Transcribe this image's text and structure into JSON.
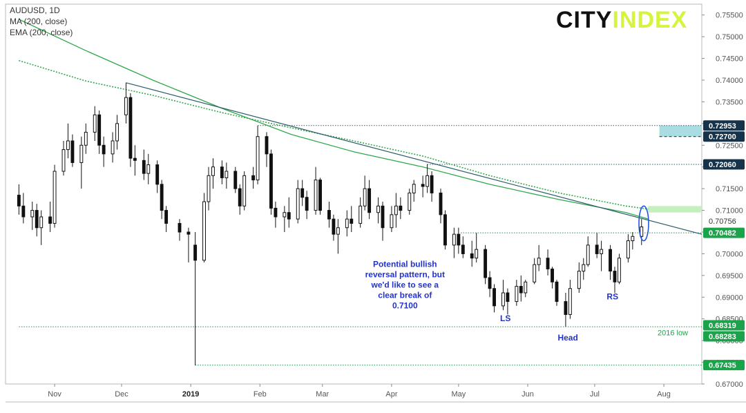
{
  "header": {
    "symbol": "AUDUSD, 1D",
    "indicator_ma": "MA (200, close)",
    "indicator_ema": "EMA (200, close)"
  },
  "logo": {
    "part1": "CITY",
    "part2": "INDEX"
  },
  "colors": {
    "candle": "#111111",
    "ma": "#2ea84a",
    "ema": "#2ea84a",
    "trendline": "#2b5a6b",
    "level_line": "#1a8f4e",
    "tag_dark": "#17334a",
    "tag_green": "#1aa34a",
    "zone_green": "#c6efc0",
    "zone_blue": "#a9dce3",
    "annotation_text": "#2233cc",
    "ellipse": "#2255dd"
  },
  "chart_data": {
    "type": "candlestick",
    "title": "AUDUSD, 1D",
    "x_tick_labels": [
      "Nov",
      "Dec",
      "2019",
      "Feb",
      "Mar",
      "Apr",
      "May",
      "Jun",
      "Jul",
      "Aug"
    ],
    "y_range": [
      0.67,
      0.7575
    ],
    "y_tick_labels": [
      "0.75500",
      "0.75000",
      "0.74500",
      "0.74000",
      "0.73500",
      "0.73000",
      "0.72500",
      "0.72000",
      "0.71500",
      "0.71000",
      "0.70500",
      "0.70000",
      "0.69500",
      "0.69000",
      "0.68500",
      "0.68000",
      "0.67500",
      "0.67000"
    ],
    "price_tags": [
      {
        "label": "0.72953",
        "value": 0.72953,
        "style": "dark"
      },
      {
        "label": "0.72700",
        "value": 0.727,
        "style": "dark"
      },
      {
        "label": "0.72060",
        "value": 0.7206,
        "style": "dark"
      },
      {
        "label": "0.70756",
        "value": 0.70756,
        "style": "plain"
      },
      {
        "label": "0.70482",
        "value": 0.70482,
        "style": "green"
      },
      {
        "label": "0.68319",
        "value": 0.68319,
        "style": "green"
      },
      {
        "label": "0.68283",
        "value": 0.68283,
        "style": "green"
      },
      {
        "label": "0.67435",
        "value": 0.67435,
        "style": "green"
      }
    ],
    "horizontal_levels": [
      {
        "value": 0.72953,
        "from": "2019-01-31",
        "to": "2019-08-18",
        "color": "dark"
      },
      {
        "value": 0.7206,
        "from": "2019-04-17",
        "to": "2019-08-18",
        "color": "dark"
      },
      {
        "value": 0.70482,
        "from": "2019-05-02",
        "to": "2019-08-18",
        "color": "green"
      },
      {
        "value": 0.68319,
        "from": "2018-10-16",
        "to": "2019-08-18",
        "color": "green"
      },
      {
        "value": 0.67435,
        "from": "2019-01-03",
        "to": "2019-08-18",
        "color": "green"
      }
    ],
    "zones": [
      {
        "y1": 0.711,
        "y2": 0.7095,
        "from": "2019-07-25",
        "to": "2019-08-18",
        "color": "green"
      },
      {
        "y1": 0.72953,
        "y2": 0.727,
        "from": "2019-07-30",
        "to": "2019-08-18",
        "color": "blue"
      }
    ],
    "trendline": {
      "from": {
        "date": "2018-12-03",
        "value": 0.7394
      },
      "to": {
        "date": "2019-08-18",
        "value": 0.7045
      }
    },
    "ma_200": {
      "name": "MA (200, close)",
      "points": [
        [
          "2018-10-16",
          0.754
        ],
        [
          "2018-11-15",
          0.7468
        ],
        [
          "2018-12-15",
          0.74
        ],
        [
          "2019-01-15",
          0.7335
        ],
        [
          "2019-02-15",
          0.7275
        ],
        [
          "2019-03-15",
          0.7235
        ],
        [
          "2019-04-15",
          0.72
        ],
        [
          "2019-05-15",
          0.716
        ],
        [
          "2019-06-15",
          0.7125
        ],
        [
          "2019-07-15",
          0.7095
        ],
        [
          "2019-07-25",
          0.708
        ]
      ]
    },
    "ema_200": {
      "name": "EMA (200, close)",
      "points": [
        [
          "2018-10-16",
          0.7445
        ],
        [
          "2018-11-15",
          0.7398
        ],
        [
          "2018-12-15",
          0.7365
        ],
        [
          "2019-01-15",
          0.7325
        ],
        [
          "2019-02-15",
          0.729
        ],
        [
          "2019-03-15",
          0.726
        ],
        [
          "2019-04-15",
          0.7225
        ],
        [
          "2019-05-15",
          0.718
        ],
        [
          "2019-06-15",
          0.714
        ],
        [
          "2019-07-15",
          0.711
        ],
        [
          "2019-07-25",
          0.7103
        ]
      ]
    },
    "candles": [
      {
        "date": "2018-10-16",
        "o": 0.7135,
        "h": 0.716,
        "l": 0.709,
        "c": 0.711
      },
      {
        "date": "2018-10-18",
        "o": 0.711,
        "h": 0.714,
        "l": 0.707,
        "c": 0.7085
      },
      {
        "date": "2018-10-22",
        "o": 0.7085,
        "h": 0.712,
        "l": 0.7055,
        "c": 0.71
      },
      {
        "date": "2018-10-24",
        "o": 0.71,
        "h": 0.7115,
        "l": 0.704,
        "c": 0.706
      },
      {
        "date": "2018-10-26",
        "o": 0.706,
        "h": 0.71,
        "l": 0.702,
        "c": 0.7085
      },
      {
        "date": "2018-10-30",
        "o": 0.7085,
        "h": 0.712,
        "l": 0.705,
        "c": 0.707
      },
      {
        "date": "2018-11-01",
        "o": 0.707,
        "h": 0.7205,
        "l": 0.706,
        "c": 0.719
      },
      {
        "date": "2018-11-05",
        "o": 0.719,
        "h": 0.726,
        "l": 0.718,
        "c": 0.724
      },
      {
        "date": "2018-11-07",
        "o": 0.724,
        "h": 0.73,
        "l": 0.722,
        "c": 0.726
      },
      {
        "date": "2018-11-09",
        "o": 0.726,
        "h": 0.7275,
        "l": 0.72,
        "c": 0.721
      },
      {
        "date": "2018-11-13",
        "o": 0.721,
        "h": 0.727,
        "l": 0.715,
        "c": 0.725
      },
      {
        "date": "2018-11-15",
        "o": 0.725,
        "h": 0.73,
        "l": 0.723,
        "c": 0.728
      },
      {
        "date": "2018-11-19",
        "o": 0.728,
        "h": 0.734,
        "l": 0.726,
        "c": 0.732
      },
      {
        "date": "2018-11-21",
        "o": 0.732,
        "h": 0.733,
        "l": 0.723,
        "c": 0.725
      },
      {
        "date": "2018-11-23",
        "o": 0.725,
        "h": 0.727,
        "l": 0.72,
        "c": 0.723
      },
      {
        "date": "2018-11-27",
        "o": 0.723,
        "h": 0.728,
        "l": 0.721,
        "c": 0.726
      },
      {
        "date": "2018-11-29",
        "o": 0.726,
        "h": 0.732,
        "l": 0.724,
        "c": 0.73
      },
      {
        "date": "2018-12-03",
        "o": 0.732,
        "h": 0.7394,
        "l": 0.73,
        "c": 0.736
      },
      {
        "date": "2018-12-05",
        "o": 0.736,
        "h": 0.737,
        "l": 0.72,
        "c": 0.722
      },
      {
        "date": "2018-12-07",
        "o": 0.722,
        "h": 0.725,
        "l": 0.718,
        "c": 0.7215
      },
      {
        "date": "2018-12-11",
        "o": 0.7215,
        "h": 0.724,
        "l": 0.717,
        "c": 0.7185
      },
      {
        "date": "2018-12-13",
        "o": 0.7185,
        "h": 0.723,
        "l": 0.716,
        "c": 0.7205
      },
      {
        "date": "2018-12-17",
        "o": 0.7205,
        "h": 0.7215,
        "l": 0.714,
        "c": 0.716
      },
      {
        "date": "2018-12-19",
        "o": 0.716,
        "h": 0.717,
        "l": 0.708,
        "c": 0.71
      },
      {
        "date": "2018-12-21",
        "o": 0.71,
        "h": 0.711,
        "l": 0.705,
        "c": 0.707
      },
      {
        "date": "2018-12-27",
        "o": 0.707,
        "h": 0.708,
        "l": 0.703,
        "c": 0.705
      },
      {
        "date": "2018-12-31",
        "o": 0.705,
        "h": 0.706,
        "l": 0.698,
        "c": 0.7045
      },
      {
        "date": "2019-01-03",
        "o": 0.702,
        "h": 0.705,
        "l": 0.6743,
        "c": 0.6985
      },
      {
        "date": "2019-01-07",
        "o": 0.6985,
        "h": 0.714,
        "l": 0.698,
        "c": 0.712
      },
      {
        "date": "2019-01-09",
        "o": 0.712,
        "h": 0.72,
        "l": 0.71,
        "c": 0.718
      },
      {
        "date": "2019-01-11",
        "o": 0.718,
        "h": 0.722,
        "l": 0.715,
        "c": 0.72
      },
      {
        "date": "2019-01-15",
        "o": 0.72,
        "h": 0.7215,
        "l": 0.716,
        "c": 0.7175
      },
      {
        "date": "2019-01-17",
        "o": 0.7175,
        "h": 0.721,
        "l": 0.715,
        "c": 0.719
      },
      {
        "date": "2019-01-21",
        "o": 0.719,
        "h": 0.72,
        "l": 0.714,
        "c": 0.715
      },
      {
        "date": "2019-01-23",
        "o": 0.715,
        "h": 0.716,
        "l": 0.709,
        "c": 0.711
      },
      {
        "date": "2019-01-25",
        "o": 0.711,
        "h": 0.719,
        "l": 0.71,
        "c": 0.718
      },
      {
        "date": "2019-01-29",
        "o": 0.718,
        "h": 0.72,
        "l": 0.715,
        "c": 0.717
      },
      {
        "date": "2019-01-31",
        "o": 0.717,
        "h": 0.7295,
        "l": 0.716,
        "c": 0.727
      },
      {
        "date": "2019-02-04",
        "o": 0.727,
        "h": 0.728,
        "l": 0.72,
        "c": 0.723
      },
      {
        "date": "2019-02-06",
        "o": 0.723,
        "h": 0.724,
        "l": 0.709,
        "c": 0.7105
      },
      {
        "date": "2019-02-08",
        "o": 0.7105,
        "h": 0.712,
        "l": 0.706,
        "c": 0.7085
      },
      {
        "date": "2019-02-12",
        "o": 0.7085,
        "h": 0.711,
        "l": 0.705,
        "c": 0.7095
      },
      {
        "date": "2019-02-14",
        "o": 0.7095,
        "h": 0.713,
        "l": 0.706,
        "c": 0.708
      },
      {
        "date": "2019-02-18",
        "o": 0.708,
        "h": 0.717,
        "l": 0.707,
        "c": 0.715
      },
      {
        "date": "2019-02-20",
        "o": 0.715,
        "h": 0.717,
        "l": 0.711,
        "c": 0.713
      },
      {
        "date": "2019-02-22",
        "o": 0.713,
        "h": 0.7145,
        "l": 0.708,
        "c": 0.71
      },
      {
        "date": "2019-02-26",
        "o": 0.71,
        "h": 0.72,
        "l": 0.709,
        "c": 0.717
      },
      {
        "date": "2019-02-28",
        "o": 0.717,
        "h": 0.7175,
        "l": 0.709,
        "c": 0.71
      },
      {
        "date": "2019-03-04",
        "o": 0.71,
        "h": 0.712,
        "l": 0.706,
        "c": 0.708
      },
      {
        "date": "2019-03-06",
        "o": 0.708,
        "h": 0.709,
        "l": 0.703,
        "c": 0.7045
      },
      {
        "date": "2019-03-08",
        "o": 0.7045,
        "h": 0.708,
        "l": 0.7,
        "c": 0.706
      },
      {
        "date": "2019-03-12",
        "o": 0.706,
        "h": 0.71,
        "l": 0.704,
        "c": 0.708
      },
      {
        "date": "2019-03-14",
        "o": 0.708,
        "h": 0.711,
        "l": 0.705,
        "c": 0.707
      },
      {
        "date": "2019-03-18",
        "o": 0.707,
        "h": 0.713,
        "l": 0.706,
        "c": 0.711
      },
      {
        "date": "2019-03-20",
        "o": 0.711,
        "h": 0.718,
        "l": 0.71,
        "c": 0.715
      },
      {
        "date": "2019-03-22",
        "o": 0.715,
        "h": 0.717,
        "l": 0.708,
        "c": 0.7095
      },
      {
        "date": "2019-03-26",
        "o": 0.7095,
        "h": 0.713,
        "l": 0.707,
        "c": 0.711
      },
      {
        "date": "2019-03-28",
        "o": 0.711,
        "h": 0.712,
        "l": 0.703,
        "c": 0.706
      },
      {
        "date": "2019-04-01",
        "o": 0.706,
        "h": 0.711,
        "l": 0.705,
        "c": 0.709
      },
      {
        "date": "2019-04-03",
        "o": 0.709,
        "h": 0.714,
        "l": 0.706,
        "c": 0.711
      },
      {
        "date": "2019-04-05",
        "o": 0.711,
        "h": 0.713,
        "l": 0.708,
        "c": 0.71
      },
      {
        "date": "2019-04-09",
        "o": 0.71,
        "h": 0.715,
        "l": 0.709,
        "c": 0.714
      },
      {
        "date": "2019-04-11",
        "o": 0.714,
        "h": 0.717,
        "l": 0.712,
        "c": 0.716
      },
      {
        "date": "2019-04-15",
        "o": 0.716,
        "h": 0.718,
        "l": 0.713,
        "c": 0.7155
      },
      {
        "date": "2019-04-17",
        "o": 0.7155,
        "h": 0.7206,
        "l": 0.714,
        "c": 0.718
      },
      {
        "date": "2019-04-19",
        "o": 0.718,
        "h": 0.719,
        "l": 0.712,
        "c": 0.714
      },
      {
        "date": "2019-04-23",
        "o": 0.714,
        "h": 0.715,
        "l": 0.707,
        "c": 0.709
      },
      {
        "date": "2019-04-25",
        "o": 0.709,
        "h": 0.71,
        "l": 0.701,
        "c": 0.702
      },
      {
        "date": "2019-04-29",
        "o": 0.702,
        "h": 0.706,
        "l": 0.699,
        "c": 0.7045
      },
      {
        "date": "2019-05-01",
        "o": 0.7045,
        "h": 0.706,
        "l": 0.7,
        "c": 0.702
      },
      {
        "date": "2019-05-03",
        "o": 0.702,
        "h": 0.704,
        "l": 0.699,
        "c": 0.7
      },
      {
        "date": "2019-05-07",
        "o": 0.7,
        "h": 0.703,
        "l": 0.697,
        "c": 0.699
      },
      {
        "date": "2019-05-09",
        "o": 0.699,
        "h": 0.7048,
        "l": 0.698,
        "c": 0.701
      },
      {
        "date": "2019-05-13",
        "o": 0.701,
        "h": 0.702,
        "l": 0.693,
        "c": 0.6945
      },
      {
        "date": "2019-05-15",
        "o": 0.6945,
        "h": 0.696,
        "l": 0.69,
        "c": 0.692
      },
      {
        "date": "2019-05-17",
        "o": 0.692,
        "h": 0.693,
        "l": 0.6865,
        "c": 0.688
      },
      {
        "date": "2019-05-21",
        "o": 0.688,
        "h": 0.694,
        "l": 0.687,
        "c": 0.691
      },
      {
        "date": "2019-05-23",
        "o": 0.691,
        "h": 0.692,
        "l": 0.686,
        "c": 0.689
      },
      {
        "date": "2019-05-27",
        "o": 0.689,
        "h": 0.694,
        "l": 0.688,
        "c": 0.6925
      },
      {
        "date": "2019-05-29",
        "o": 0.6925,
        "h": 0.695,
        "l": 0.689,
        "c": 0.691
      },
      {
        "date": "2019-05-31",
        "o": 0.691,
        "h": 0.694,
        "l": 0.69,
        "c": 0.6935
      },
      {
        "date": "2019-06-04",
        "o": 0.6935,
        "h": 0.699,
        "l": 0.693,
        "c": 0.6975
      },
      {
        "date": "2019-06-06",
        "o": 0.6975,
        "h": 0.702,
        "l": 0.696,
        "c": 0.699
      },
      {
        "date": "2019-06-10",
        "o": 0.699,
        "h": 0.701,
        "l": 0.695,
        "c": 0.6965
      },
      {
        "date": "2019-06-12",
        "o": 0.6965,
        "h": 0.697,
        "l": 0.692,
        "c": 0.6935
      },
      {
        "date": "2019-06-14",
        "o": 0.6935,
        "h": 0.694,
        "l": 0.688,
        "c": 0.689
      },
      {
        "date": "2019-06-18",
        "o": 0.689,
        "h": 0.691,
        "l": 0.6832,
        "c": 0.686
      },
      {
        "date": "2019-06-20",
        "o": 0.686,
        "h": 0.694,
        "l": 0.685,
        "c": 0.692
      },
      {
        "date": "2019-06-24",
        "o": 0.692,
        "h": 0.698,
        "l": 0.691,
        "c": 0.696
      },
      {
        "date": "2019-06-26",
        "o": 0.696,
        "h": 0.699,
        "l": 0.694,
        "c": 0.6975
      },
      {
        "date": "2019-06-28",
        "o": 0.6975,
        "h": 0.704,
        "l": 0.697,
        "c": 0.702
      },
      {
        "date": "2019-07-02",
        "o": 0.702,
        "h": 0.7048,
        "l": 0.699,
        "c": 0.7
      },
      {
        "date": "2019-07-04",
        "o": 0.7,
        "h": 0.703,
        "l": 0.696,
        "c": 0.701
      },
      {
        "date": "2019-07-08",
        "o": 0.701,
        "h": 0.702,
        "l": 0.694,
        "c": 0.696
      },
      {
        "date": "2019-07-10",
        "o": 0.696,
        "h": 0.697,
        "l": 0.691,
        "c": 0.6935
      },
      {
        "date": "2019-07-12",
        "o": 0.6935,
        "h": 0.7,
        "l": 0.693,
        "c": 0.699
      },
      {
        "date": "2019-07-16",
        "o": 0.699,
        "h": 0.7045,
        "l": 0.698,
        "c": 0.703
      },
      {
        "date": "2019-07-18",
        "o": 0.703,
        "h": 0.705,
        "l": 0.701,
        "c": 0.704
      },
      {
        "date": "2019-07-22",
        "o": 0.704,
        "h": 0.708,
        "l": 0.702,
        "c": 0.7062
      }
    ],
    "ellipse": {
      "date": "2019-07-23",
      "center": 0.707,
      "ry": 0.004
    },
    "annotations": [
      {
        "text": "Potential bullish reversal pattern, but we'd like to see a clear break of 0.7100",
        "lines": [
          "Potential bullish",
          "reversal pattern, but",
          "we'd like to see a",
          "clear break of",
          "0.7100"
        ],
        "date": "2019-04-07",
        "value": 0.697,
        "color": "blue"
      },
      {
        "text": "LS",
        "date": "2019-05-22",
        "value": 0.6845,
        "color": "blue"
      },
      {
        "text": "Head",
        "date": "2019-06-19",
        "value": 0.68,
        "color": "blue"
      },
      {
        "text": "RS",
        "date": "2019-07-09",
        "value": 0.6895,
        "color": "blue"
      },
      {
        "text": "2016 low",
        "date": "2019-08-05",
        "value": 0.6812,
        "color": "green"
      }
    ]
  }
}
